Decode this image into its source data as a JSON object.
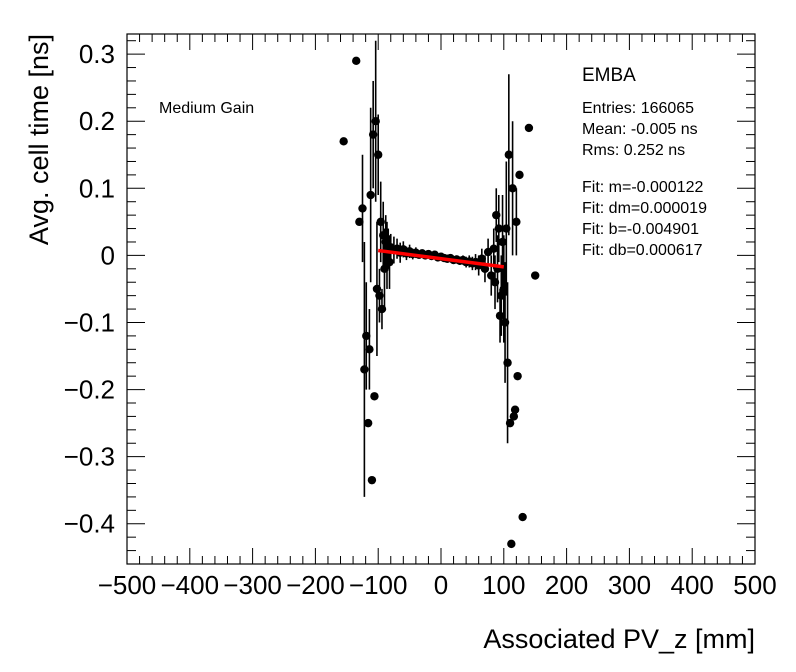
{
  "chart_data": {
    "type": "scatter",
    "title": "",
    "xlabel": "Associated PV_z [mm]",
    "ylabel": "Avg. cell time [ns]",
    "xlim": [
      -500,
      500
    ],
    "ylim": [
      -0.46,
      0.33
    ],
    "x_ticks": [
      -500,
      -400,
      -300,
      -200,
      -100,
      0,
      100,
      200,
      300,
      400,
      500
    ],
    "x_tick_labels": [
      "−500",
      "−400",
      "−300",
      "−200",
      "−100",
      "0",
      "100",
      "200",
      "300",
      "400",
      "500"
    ],
    "y_ticks": [
      0.3,
      0.2,
      0.1,
      0,
      -0.1,
      -0.2,
      -0.3,
      -0.4
    ],
    "y_tick_labels": [
      "0.3",
      "0.2",
      "0.1",
      "0",
      "−0.1",
      "−0.2",
      "−0.3",
      "−0.4"
    ],
    "annotation": "Medium Gain",
    "partition": "EMBA",
    "stats": [
      "Entries: 166065",
      "Mean: -0.005 ns",
      "Rms: 0.252 ns"
    ],
    "fit_text": [
      "Fit: m=-0.000122",
      "Fit: dm=0.000019",
      "Fit: b=-0.004901",
      "Fit: db=0.000617"
    ],
    "fit": {
      "m": -0.000122,
      "b": -0.004901,
      "x_range": [
        -100,
        100
      ],
      "color": "#ff0000"
    },
    "series": [
      {
        "name": "data",
        "color": "#000000",
        "points": [
          {
            "x": -155,
            "y": 0.17,
            "err": 0.0
          },
          {
            "x": -135,
            "y": 0.29,
            "err": 0.0
          },
          {
            "x": -130,
            "y": 0.05,
            "err": 0.0
          },
          {
            "x": -125,
            "y": 0.07,
            "err": 0.08
          },
          {
            "x": -122,
            "y": -0.17,
            "err": 0.19
          },
          {
            "x": -119,
            "y": -0.12,
            "err": 0.08
          },
          {
            "x": -116,
            "y": -0.25,
            "err": 0.0
          },
          {
            "x": -114,
            "y": -0.14,
            "err": 0.06
          },
          {
            "x": -112,
            "y": 0.09,
            "err": 0.13
          },
          {
            "x": -110,
            "y": -0.335,
            "err": 0.0
          },
          {
            "x": -108,
            "y": 0.18,
            "err": 0.08
          },
          {
            "x": -106,
            "y": -0.21,
            "err": 0.0
          },
          {
            "x": -104,
            "y": 0.2,
            "err": 0.12
          },
          {
            "x": -102,
            "y": -0.05,
            "err": 0.1
          },
          {
            "x": -100,
            "y": 0.15,
            "err": 0.06
          },
          {
            "x": -98,
            "y": -0.06,
            "err": 0.04
          },
          {
            "x": -96,
            "y": 0.05,
            "err": 0.06
          },
          {
            "x": -94,
            "y": -0.08,
            "err": 0.03
          },
          {
            "x": -92,
            "y": 0.03,
            "err": 0.05
          },
          {
            "x": -90,
            "y": -0.02,
            "err": 0.06
          },
          {
            "x": -88,
            "y": 0.02,
            "err": 0.04
          },
          {
            "x": -86,
            "y": 0.0,
            "err": 0.05
          },
          {
            "x": -84,
            "y": 0.01,
            "err": 0.03
          },
          {
            "x": -82,
            "y": -0.01,
            "err": 0.04
          },
          {
            "x": -80,
            "y": 0.012,
            "err": 0.02
          },
          {
            "x": -75,
            "y": 0.008,
            "err": 0.02
          },
          {
            "x": -70,
            "y": 0.01,
            "err": 0.015
          },
          {
            "x": -65,
            "y": 0.004,
            "err": 0.015
          },
          {
            "x": -60,
            "y": 0.009,
            "err": 0.012
          },
          {
            "x": -55,
            "y": 0.003,
            "err": 0.01
          },
          {
            "x": -50,
            "y": 0.006,
            "err": 0.01
          },
          {
            "x": -45,
            "y": 0.002,
            "err": 0.008
          },
          {
            "x": -40,
            "y": 0.004,
            "err": 0.008
          },
          {
            "x": -35,
            "y": 0.001,
            "err": 0.006
          },
          {
            "x": -30,
            "y": 0.003,
            "err": 0.006
          },
          {
            "x": -25,
            "y": 0.0,
            "err": 0.005
          },
          {
            "x": -20,
            "y": 0.002,
            "err": 0.005
          },
          {
            "x": -15,
            "y": -0.001,
            "err": 0.005
          },
          {
            "x": -10,
            "y": 0.001,
            "err": 0.004
          },
          {
            "x": -5,
            "y": -0.003,
            "err": 0.004
          },
          {
            "x": 0,
            "y": -0.002,
            "err": 0.004
          },
          {
            "x": 5,
            "y": -0.004,
            "err": 0.004
          },
          {
            "x": 10,
            "y": -0.005,
            "err": 0.005
          },
          {
            "x": 15,
            "y": -0.004,
            "err": 0.005
          },
          {
            "x": 20,
            "y": -0.007,
            "err": 0.005
          },
          {
            "x": 25,
            "y": -0.006,
            "err": 0.006
          },
          {
            "x": 30,
            "y": -0.008,
            "err": 0.006
          },
          {
            "x": 35,
            "y": -0.007,
            "err": 0.007
          },
          {
            "x": 40,
            "y": -0.01,
            "err": 0.008
          },
          {
            "x": 45,
            "y": -0.009,
            "err": 0.009
          },
          {
            "x": 50,
            "y": -0.012,
            "err": 0.01
          },
          {
            "x": 55,
            "y": -0.01,
            "err": 0.012
          },
          {
            "x": 60,
            "y": -0.015,
            "err": 0.015
          },
          {
            "x": 65,
            "y": -0.005,
            "err": 0.015
          },
          {
            "x": 70,
            "y": -0.02,
            "err": 0.02
          },
          {
            "x": 75,
            "y": 0.005,
            "err": 0.02
          },
          {
            "x": 80,
            "y": -0.03,
            "err": 0.03
          },
          {
            "x": 84,
            "y": 0.01,
            "err": 0.03
          },
          {
            "x": 86,
            "y": -0.04,
            "err": 0.04
          },
          {
            "x": 88,
            "y": 0.06,
            "err": 0.04
          },
          {
            "x": 90,
            "y": -0.02,
            "err": 0.05
          },
          {
            "x": 92,
            "y": 0.04,
            "err": 0.05
          },
          {
            "x": 94,
            "y": -0.09,
            "err": 0.04
          },
          {
            "x": 96,
            "y": -0.06,
            "err": 0.06
          },
          {
            "x": 98,
            "y": 0.02,
            "err": 0.07
          },
          {
            "x": 100,
            "y": -0.05,
            "err": 0.08
          },
          {
            "x": 102,
            "y": -0.1,
            "err": 0.09
          },
          {
            "x": 104,
            "y": 0.04,
            "err": 0.1
          },
          {
            "x": 106,
            "y": -0.16,
            "err": 0.12
          },
          {
            "x": 108,
            "y": 0.15,
            "err": 0.12
          },
          {
            "x": 110,
            "y": -0.25,
            "err": 0.0
          },
          {
            "x": 112,
            "y": -0.43,
            "err": 0.0
          },
          {
            "x": 114,
            "y": 0.1,
            "err": 0.1
          },
          {
            "x": 116,
            "y": -0.24,
            "err": 0.0
          },
          {
            "x": 118,
            "y": -0.23,
            "err": 0.0
          },
          {
            "x": 120,
            "y": 0.05,
            "err": 0.05
          },
          {
            "x": 122,
            "y": -0.18,
            "err": 0.0
          },
          {
            "x": 125,
            "y": 0.12,
            "err": 0.0
          },
          {
            "x": 130,
            "y": -0.39,
            "err": 0.0
          },
          {
            "x": 140,
            "y": 0.19,
            "err": 0.0
          },
          {
            "x": 150,
            "y": -0.03,
            "err": 0.0
          }
        ]
      }
    ]
  }
}
